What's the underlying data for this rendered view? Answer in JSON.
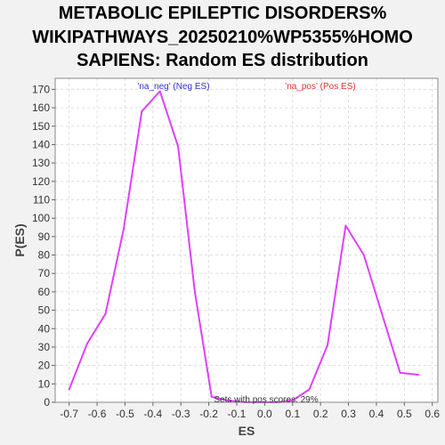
{
  "chart_data": {
    "type": "line",
    "title_lines": [
      "METABOLIC EPILEPTIC DISORDERS%",
      "WIKIPATHWAYS_20250210%WP5355%HOMO",
      "SAPIENS: Random ES distribution"
    ],
    "xlabel": "ES",
    "ylabel": "P(ES)",
    "xlim": [
      -0.75,
      0.62
    ],
    "ylim": [
      0,
      176
    ],
    "xticks": [
      -0.7,
      -0.6,
      -0.5,
      -0.4,
      -0.3,
      -0.2,
      -0.1,
      0.0,
      0.1,
      0.2,
      0.3,
      0.4,
      0.5,
      0.6
    ],
    "xtick_labels": [
      "-0.7",
      "-0.6",
      "-0.5",
      "-0.4",
      "-0.3",
      "-0.2",
      "-0.1",
      "0.0",
      "0.1",
      "0.2",
      "0.3",
      "0.4",
      "0.5",
      "0.6"
    ],
    "yticks": [
      0,
      10,
      20,
      30,
      40,
      50,
      60,
      70,
      80,
      90,
      100,
      110,
      120,
      130,
      140,
      150,
      160,
      170
    ],
    "ytick_labels": [
      "0",
      "10",
      "20",
      "30",
      "40",
      "50",
      "60",
      "70",
      "80",
      "90",
      "100",
      "110",
      "120",
      "130",
      "140",
      "150",
      "160",
      "170"
    ],
    "grid": true,
    "series": [
      {
        "color": "#e040fb",
        "x": [
          -0.7,
          -0.635,
          -0.57,
          -0.505,
          -0.44,
          -0.375,
          -0.31,
          -0.25,
          -0.19,
          -0.135,
          -0.07,
          0.0,
          0.05,
          0.1,
          0.16,
          0.225,
          0.29,
          0.355,
          0.42,
          0.485,
          0.55
        ],
        "y": [
          7,
          32,
          48,
          94,
          158,
          169,
          139,
          60,
          3,
          1,
          0,
          0,
          0,
          1,
          7,
          31,
          96,
          80,
          48,
          16,
          15
        ]
      }
    ],
    "annotations": [
      {
        "text": "'na_neg' (Neg ES)",
        "color": "#3333cc"
      },
      {
        "text": "'na_pos' (Pos ES)",
        "color": "#dd3333"
      },
      {
        "text": "Sets with pos scores: 29%",
        "color": "#333333"
      }
    ]
  }
}
